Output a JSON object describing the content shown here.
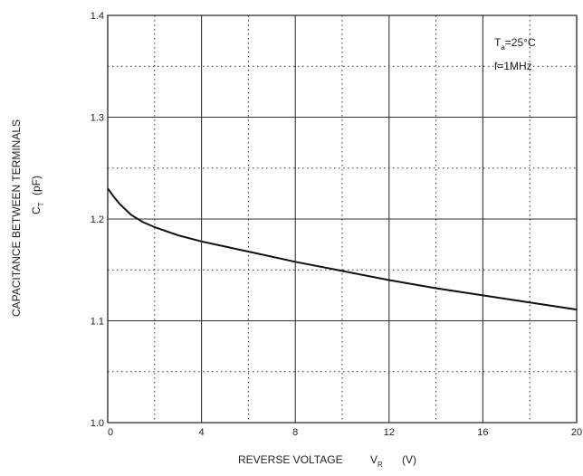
{
  "chart_data": {
    "type": "line",
    "title": "",
    "xlabel": "REVERSE VOLTAGE",
    "xlabel_symbol": "V",
    "xlabel_symbol_sub": "R",
    "xlabel_unit": "(V)",
    "ylabel": "CAPACITANCE BETWEEN TERMINALS",
    "ylabel_symbol": "C",
    "ylabel_symbol_sub": "T",
    "ylabel_unit": "(pF)",
    "xlim": [
      0,
      20
    ],
    "ylim": [
      1.0,
      1.4
    ],
    "x_ticks": [
      0,
      4,
      8,
      12,
      16,
      20
    ],
    "x_tick_labels": [
      "0",
      "4",
      "8",
      "12",
      "16",
      "20"
    ],
    "y_ticks": [
      1.0,
      1.1,
      1.2,
      1.3,
      1.4
    ],
    "y_tick_labels": [
      "1.0",
      "1.1",
      "1.2",
      "1.3",
      "1.4"
    ],
    "x_minor_grid": [
      2,
      6,
      10,
      14,
      18
    ],
    "y_minor_grid": [
      1.05,
      1.15,
      1.25,
      1.35
    ],
    "grid": true,
    "annotation": {
      "line1_symbol": "T",
      "line1_sub": "a",
      "line1_rest": "=25°C",
      "line2": "f=1MHz"
    },
    "series": [
      {
        "x": [
          0,
          0.25,
          0.5,
          1,
          1.5,
          2,
          3,
          4,
          6,
          8,
          10,
          12,
          14,
          16,
          18,
          20
        ],
        "values": [
          1.23,
          1.222,
          1.215,
          1.204,
          1.197,
          1.192,
          1.184,
          1.178,
          1.168,
          1.158,
          1.149,
          1.14,
          1.132,
          1.125,
          1.118,
          1.111
        ]
      }
    ]
  }
}
